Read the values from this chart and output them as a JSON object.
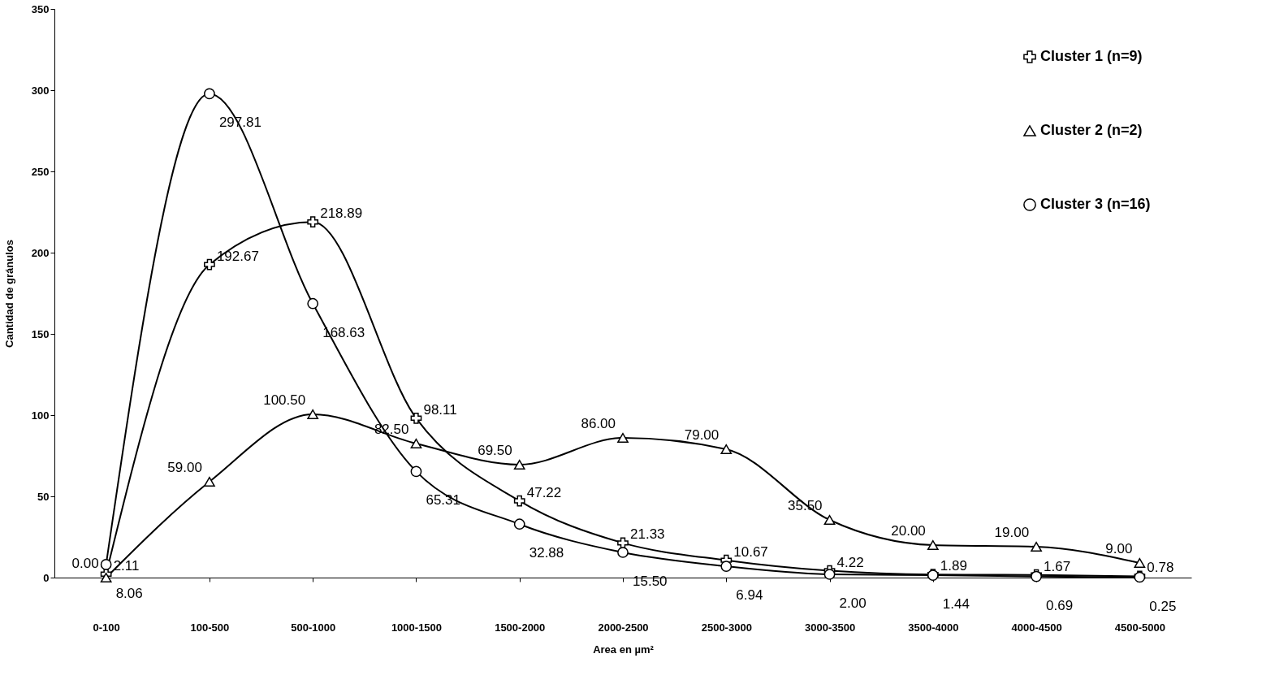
{
  "chart_data": {
    "type": "line",
    "xlabel": "Area en µm²",
    "ylabel": "Cantidad de gránulos",
    "categories": [
      "0-100",
      "100-500",
      "500-1000",
      "1000-1500",
      "1500-2000",
      "2000-2500",
      "2500-3000",
      "3000-3500",
      "3500-4000",
      "4000-4500",
      "4500-5000"
    ],
    "ylim": [
      0,
      350
    ],
    "yticks": [
      0,
      50,
      100,
      150,
      200,
      250,
      300,
      350
    ],
    "grid": false,
    "legend": "top right",
    "line_style": "solid",
    "series": [
      {
        "name": "Cluster 1 (n=9)",
        "color": "#000000",
        "marker": "cross",
        "values": [
          2.11,
          192.67,
          218.89,
          98.11,
          47.22,
          21.33,
          10.67,
          4.22,
          1.89,
          1.67,
          0.78
        ],
        "value_labels": [
          "2.11",
          "192.67",
          "218.89",
          "98.11",
          "47.22",
          "21.33",
          "10.67",
          "4.22",
          "1.89",
          "1.67",
          "0.78"
        ]
      },
      {
        "name": "Cluster 2 (n=2)",
        "color": "#000000",
        "marker": "triangle",
        "values": [
          0,
          59.0,
          100.5,
          82.5,
          69.5,
          86.0,
          79.0,
          35.5,
          20.0,
          19.0,
          9.0
        ],
        "value_labels": [
          "0.00",
          "59.00",
          "100.50",
          "82.50",
          "69.50",
          "86.00",
          "79.00",
          "35.50",
          "20.00",
          "19.00",
          "9.00"
        ]
      },
      {
        "name": "Cluster 3 (n=16)",
        "color": "#000000",
        "marker": "circle",
        "values": [
          8.06,
          297.81,
          168.63,
          65.31,
          32.88,
          15.5,
          6.94,
          2.0,
          1.44,
          0.69,
          0.25
        ],
        "value_labels": [
          "8.06",
          "297.81",
          "168.63",
          "65.31",
          "32.88",
          "15.50",
          "6.94",
          "2.00",
          "1.44",
          "0.69",
          "0.25"
        ]
      }
    ]
  }
}
